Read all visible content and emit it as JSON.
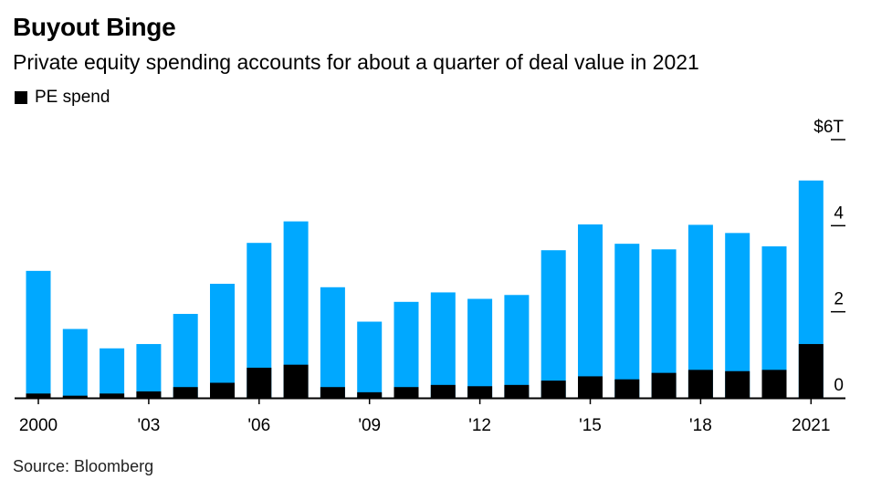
{
  "title": "Buyout Binge",
  "subtitle": "Private equity spending accounts for about a quarter of deal value in 2021",
  "legend": {
    "pe_label": "PE spend"
  },
  "source": "Source: Bloomberg",
  "colors": {
    "total": "#00a8ff",
    "pe": "#000000",
    "axis": "#000000"
  },
  "chart_data": {
    "type": "bar",
    "stacked": true,
    "categories": [
      "2000",
      "2001",
      "2002",
      "2003",
      "2004",
      "2005",
      "2006",
      "2007",
      "2008",
      "2009",
      "2010",
      "2011",
      "2012",
      "2013",
      "2014",
      "2015",
      "2016",
      "2017",
      "2018",
      "2019",
      "2020",
      "2021"
    ],
    "series": [
      {
        "name": "PE spend",
        "values": [
          0.1,
          0.05,
          0.1,
          0.15,
          0.25,
          0.35,
          0.7,
          0.77,
          0.25,
          0.13,
          0.25,
          0.3,
          0.27,
          0.3,
          0.4,
          0.5,
          0.43,
          0.58,
          0.65,
          0.62,
          0.65,
          1.25
        ]
      },
      {
        "values": [
          2.95,
          1.6,
          1.15,
          1.25,
          1.95,
          2.65,
          3.6,
          4.1,
          2.57,
          1.77,
          2.23,
          2.45,
          2.3,
          2.39,
          3.43,
          4.03,
          3.58,
          3.45,
          4.02,
          3.83,
          3.52,
          5.05
        ]
      }
    ],
    "total_semantics": "second series is total deal value; PE spend shown as black portion from baseline",
    "x_tick_labels": [
      "2000",
      "'03",
      "'06",
      "'09",
      "'12",
      "'15",
      "'18",
      "2021"
    ],
    "x_tick_indices": [
      0,
      3,
      6,
      9,
      12,
      15,
      18,
      21
    ],
    "y_ticks": [
      {
        "value": 0,
        "label": "0"
      },
      {
        "value": 2,
        "label": "2"
      },
      {
        "value": 4,
        "label": "4"
      },
      {
        "value": 6,
        "label": "$6T"
      }
    ],
    "ylim": [
      0,
      6
    ],
    "y_axis_position": "right",
    "legend_position": "top-left",
    "grid": false
  }
}
